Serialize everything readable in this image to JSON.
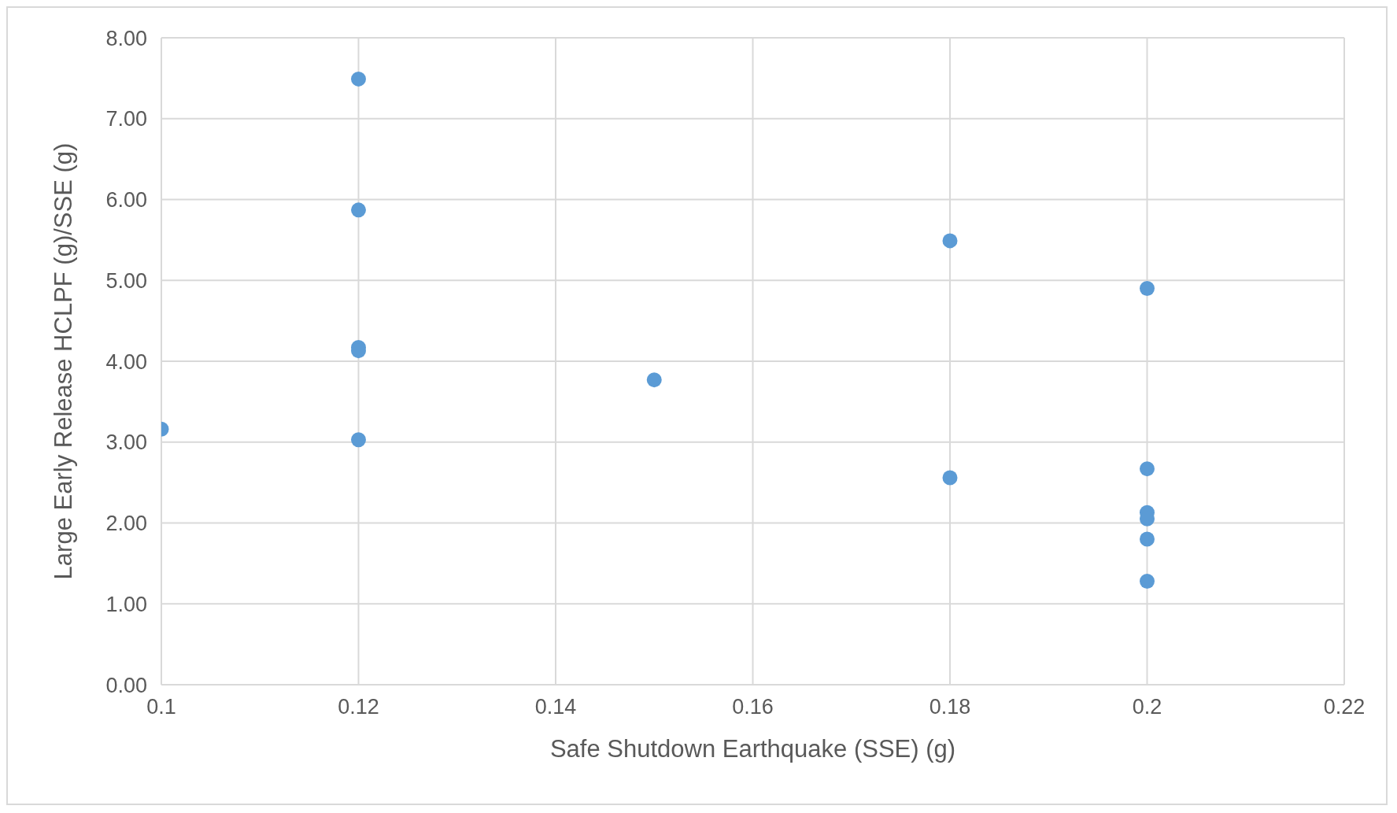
{
  "chart_data": {
    "type": "scatter",
    "xlabel": "Safe Shutdown Earthquake (SSE) (g)",
    "ylabel": "Large Early Release HCLPF (g)/SSE (g)",
    "x": [
      0.1,
      0.12,
      0.12,
      0.12,
      0.12,
      0.12,
      0.15,
      0.18,
      0.18,
      0.2,
      0.2,
      0.2,
      0.2,
      0.2,
      0.2
    ],
    "values": [
      3.16,
      7.49,
      5.87,
      4.17,
      4.13,
      3.03,
      3.77,
      5.49,
      2.56,
      4.9,
      2.67,
      2.13,
      2.05,
      1.8,
      1.28
    ],
    "color": "#5b9bd5",
    "marker": "circle",
    "grid": true,
    "legend": false,
    "xlim": [
      0.1,
      0.22
    ],
    "xticks": [
      0.1,
      0.12,
      0.14,
      0.16,
      0.18,
      0.2,
      0.22
    ],
    "ylim": [
      0,
      8
    ],
    "yticks": [
      {
        "value": 0,
        "label": "0.00"
      },
      {
        "value": 1,
        "label": "1.00"
      },
      {
        "value": 2,
        "label": "2.00"
      },
      {
        "value": 3,
        "label": "3.00"
      },
      {
        "value": 4,
        "label": "4.00"
      },
      {
        "value": 5,
        "label": "5.00"
      },
      {
        "value": 6,
        "label": "6.00"
      },
      {
        "value": 7,
        "label": "7.00"
      },
      {
        "value": 8,
        "label": "8.00"
      }
    ]
  }
}
